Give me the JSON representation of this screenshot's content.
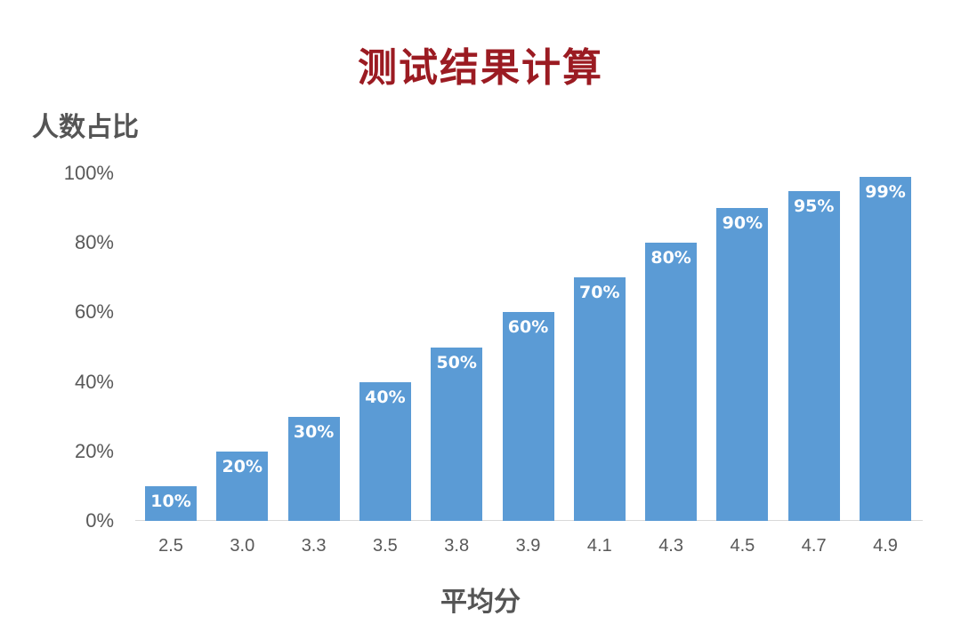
{
  "chart_data": {
    "type": "bar",
    "title": "测试结果计算",
    "xlabel": "平均分",
    "ylabel": "人数占比",
    "categories": [
      "2.5",
      "3.0",
      "3.3",
      "3.5",
      "3.8",
      "3.9",
      "4.1",
      "4.3",
      "4.5",
      "4.7",
      "4.9"
    ],
    "values": [
      10,
      20,
      30,
      40,
      50,
      60,
      70,
      80,
      90,
      95,
      99
    ],
    "value_labels": [
      "10%",
      "20%",
      "30%",
      "40%",
      "50%",
      "60%",
      "70%",
      "80%",
      "90%",
      "95%",
      "99%"
    ],
    "yticks": [
      "0%",
      "20%",
      "40%",
      "60%",
      "80%",
      "100%"
    ],
    "ylim": [
      0,
      100
    ],
    "grid": false,
    "legend": null,
    "colors": {
      "bar": "#5b9bd5",
      "title": "#9b1b22",
      "axis_text": "#595959",
      "bar_label": "#ffffff"
    }
  }
}
